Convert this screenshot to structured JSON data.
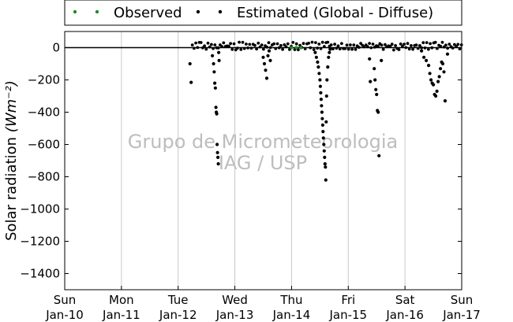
{
  "chart_data": {
    "type": "scatter",
    "title": "",
    "ylabel": "Solar radiation",
    "ylabel_unit": "(Wm⁻²)",
    "ylim": [
      -1500,
      100
    ],
    "y_ticks": [
      0,
      -200,
      -400,
      -600,
      -800,
      -1000,
      -1200,
      -1400
    ],
    "xlim": [
      "2016-01-10",
      "2016-01-17"
    ],
    "x_ticks": [
      {
        "day": "Sun",
        "date": "Jan-10"
      },
      {
        "day": "Mon",
        "date": "Jan-11"
      },
      {
        "day": "Tue",
        "date": "Jan-12"
      },
      {
        "day": "Wed",
        "date": "Jan-13"
      },
      {
        "day": "Thu",
        "date": "Jan-14"
      },
      {
        "day": "Fri",
        "date": "Jan-15"
      },
      {
        "day": "Sat",
        "date": "Jan-16"
      },
      {
        "day": "Sun",
        "date": "Jan-17"
      }
    ],
    "grid": "vertical",
    "legend": {
      "placement": "top-center"
    },
    "series": [
      {
        "name": "Observed",
        "color": "#228b22",
        "marker": "dot",
        "x": [
          "2016-01-14 00:00",
          "2016-01-14 02:00",
          "2016-01-14 04:00"
        ],
        "y": [
          0,
          0,
          0
        ]
      },
      {
        "name": "Estimated (Global - Diffuse)",
        "color": "#000000",
        "marker": "dot",
        "baseline_y": 0,
        "baseline_x_range": [
          "2016-01-12 06:00",
          "2016-01-17 00:00"
        ],
        "x": [
          "2016-01-12 05:00",
          "2016-01-12 05:30",
          "2016-01-12 14:30",
          "2016-01-12 15:00",
          "2016-01-12 15:15",
          "2016-01-12 15:30",
          "2016-01-12 15:45",
          "2016-01-12 16:00",
          "2016-01-12 16:10",
          "2016-01-12 16:20",
          "2016-01-12 16:30",
          "2016-01-12 16:40",
          "2016-01-12 16:50",
          "2016-01-12 17:00",
          "2016-01-12 17:10",
          "2016-01-12 17:20",
          "2016-01-13 12:00",
          "2016-01-13 12:30",
          "2016-01-13 13:00",
          "2016-01-13 13:30",
          "2016-01-13 14:00",
          "2016-01-13 14:30",
          "2016-01-13 15:00",
          "2016-01-14 10:00",
          "2016-01-14 10:30",
          "2016-01-14 11:00",
          "2016-01-14 11:20",
          "2016-01-14 11:40",
          "2016-01-14 12:00",
          "2016-01-14 12:10",
          "2016-01-14 12:20",
          "2016-01-14 12:30",
          "2016-01-14 12:40",
          "2016-01-14 12:50",
          "2016-01-14 13:00",
          "2016-01-14 13:10",
          "2016-01-14 13:20",
          "2016-01-14 13:30",
          "2016-01-14 13:40",
          "2016-01-14 13:50",
          "2016-01-14 14:00",
          "2016-01-14 14:10",
          "2016-01-14 14:20",
          "2016-01-14 14:30",
          "2016-01-14 14:40",
          "2016-01-14 14:50",
          "2016-01-14 15:00",
          "2016-01-14 15:20",
          "2016-01-14 15:40",
          "2016-01-14 16:00",
          "2016-01-14 16:20",
          "2016-01-15 09:00",
          "2016-01-15 09:20",
          "2016-01-15 11:00",
          "2016-01-15 11:20",
          "2016-01-15 11:40",
          "2016-01-15 12:00",
          "2016-01-15 12:20",
          "2016-01-15 12:40",
          "2016-01-15 13:00",
          "2016-01-15 14:00",
          "2016-01-16 07:00",
          "2016-01-16 08:00",
          "2016-01-16 09:00",
          "2016-01-16 10:00",
          "2016-01-16 10:30",
          "2016-01-16 11:00",
          "2016-01-16 11:30",
          "2016-01-16 12:00",
          "2016-01-16 12:30",
          "2016-01-16 13:00",
          "2016-01-16 13:30",
          "2016-01-16 14:00",
          "2016-01-16 14:30",
          "2016-01-16 15:00",
          "2016-01-16 15:30",
          "2016-01-16 16:00",
          "2016-01-16 16:30",
          "2016-01-16 17:00",
          "2016-01-16 18:00"
        ],
        "y": [
          -100,
          -215,
          -50,
          -100,
          -150,
          -220,
          -250,
          -370,
          -400,
          -410,
          -600,
          -650,
          -680,
          -720,
          -30,
          -80,
          -60,
          -100,
          -140,
          -190,
          -50,
          -20,
          -80,
          -30,
          -60,
          -90,
          -120,
          -160,
          -200,
          -240,
          -280,
          -320,
          -360,
          -400,
          -440,
          -480,
          -520,
          -560,
          -600,
          -640,
          -680,
          -720,
          -740,
          -820,
          -460,
          -300,
          -200,
          -120,
          -60,
          -30,
          -10,
          -70,
          -210,
          -130,
          -200,
          -260,
          -290,
          -390,
          -400,
          -670,
          -80,
          -20,
          -60,
          -80,
          -110,
          -160,
          -200,
          -220,
          -230,
          -290,
          -300,
          -270,
          -210,
          -180,
          -130,
          -90,
          -100,
          -150,
          -330,
          -40
        ]
      }
    ],
    "watermark": [
      "Grupo de Micrometeorologia",
      "IAG / USP"
    ]
  }
}
